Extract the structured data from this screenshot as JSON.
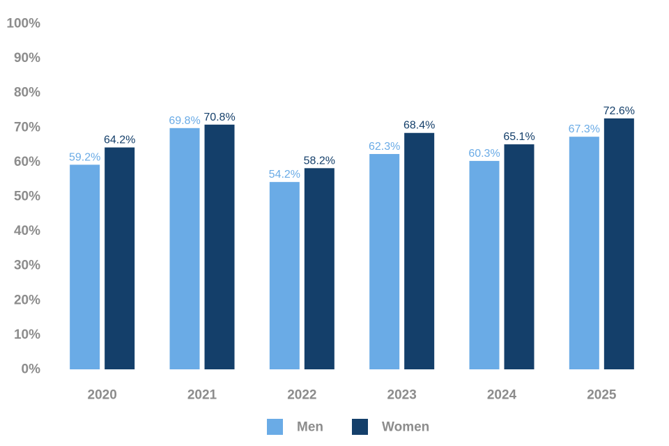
{
  "chart_data": {
    "type": "bar",
    "title": "",
    "xlabel": "",
    "ylabel": "",
    "categories": [
      "2020",
      "2021",
      "2022",
      "2023",
      "2024",
      "2025"
    ],
    "series": [
      {
        "name": "Men",
        "color": "#6aabe6",
        "values": [
          59.2,
          69.8,
          54.2,
          62.3,
          60.3,
          67.3
        ],
        "labels": [
          "59.2%",
          "69.8%",
          "54.2%",
          "62.3%",
          "60.3%",
          "67.3%"
        ]
      },
      {
        "name": "Women",
        "color": "#143f6a",
        "values": [
          64.2,
          70.8,
          58.2,
          68.4,
          65.1,
          72.6
        ],
        "labels": [
          "64.2%",
          "70.8%",
          "58.2%",
          "68.4%",
          "65.1%",
          "72.6%"
        ]
      }
    ],
    "ylim": [
      0,
      100
    ],
    "yticks": [
      "0%",
      "10%",
      "20%",
      "30%",
      "40%",
      "50%",
      "60%",
      "70%",
      "80%",
      "90%",
      "100%"
    ],
    "grid": false,
    "legend": "bottom-center"
  }
}
